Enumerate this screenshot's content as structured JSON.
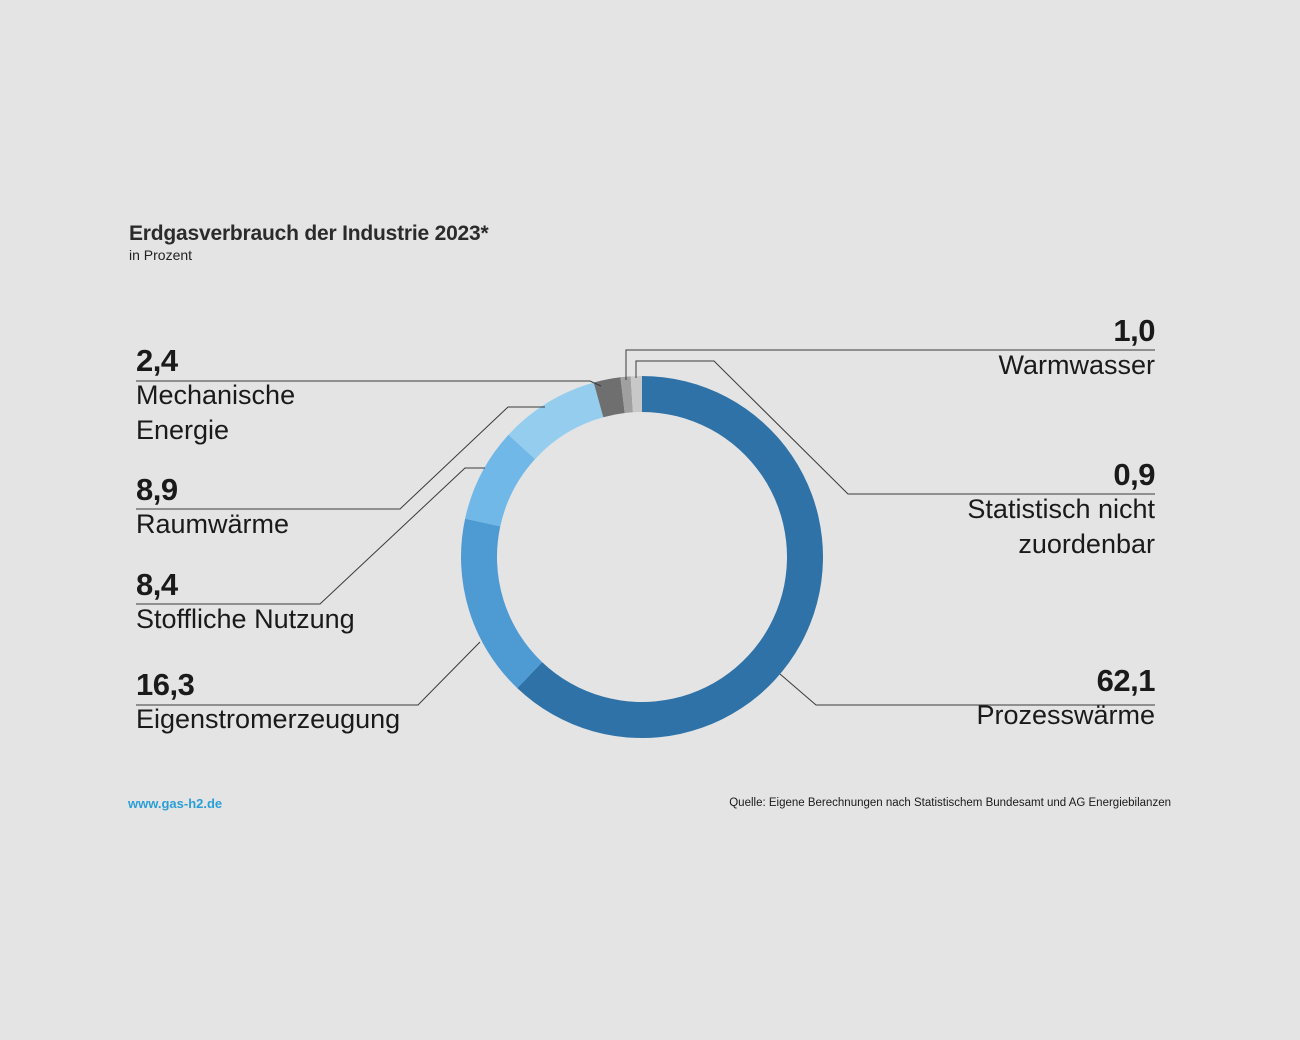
{
  "header": {
    "title": "Erdgasverbrauch der Industrie 2023*",
    "subtitle": "in Prozent"
  },
  "chart_data": {
    "type": "pie",
    "variant": "donut",
    "title": "Erdgasverbrauch der Industrie 2023*",
    "subtitle": "in Prozent",
    "start": "top",
    "direction": "clockwise",
    "slices": [
      {
        "key": "prozesswaerme",
        "label": "Prozesswärme",
        "value": 62.1,
        "value_text": "62,1",
        "color": "#2e72a7"
      },
      {
        "key": "eigenstrom",
        "label": "Eigenstromerzeugung",
        "value": 16.3,
        "value_text": "16,3",
        "color": "#4e9bd4"
      },
      {
        "key": "stofflich",
        "label": "Stoffliche Nutzung",
        "value": 8.4,
        "value_text": "8,4",
        "color": "#6fb8e8"
      },
      {
        "key": "raumwaerme",
        "label": "Raumwärme",
        "value": 8.9,
        "value_text": "8,9",
        "color": "#95cdee"
      },
      {
        "key": "mechanisch",
        "label": "Mechanische Energie",
        "label_lines": [
          "Mechanische",
          "Energie"
        ],
        "value": 2.4,
        "value_text": "2,4",
        "color": "#6f6f6f"
      },
      {
        "key": "statistisch",
        "label": "Statistisch nicht zuordenbar",
        "label_lines": [
          "Statistisch nicht",
          "zuordenbar"
        ],
        "value": 0.9,
        "value_text": "0,9",
        "color": "#a0a0a0"
      },
      {
        "key": "warmwasser",
        "label": "Warmwasser",
        "value": 1.0,
        "value_text": "1,0",
        "color": "#c8c8c8"
      }
    ]
  },
  "footer": {
    "url": "www.gas-h2.de",
    "source": "Quelle: Eigene Berechnungen nach Statistischem Bundesamt und AG Energiebilanzen"
  }
}
